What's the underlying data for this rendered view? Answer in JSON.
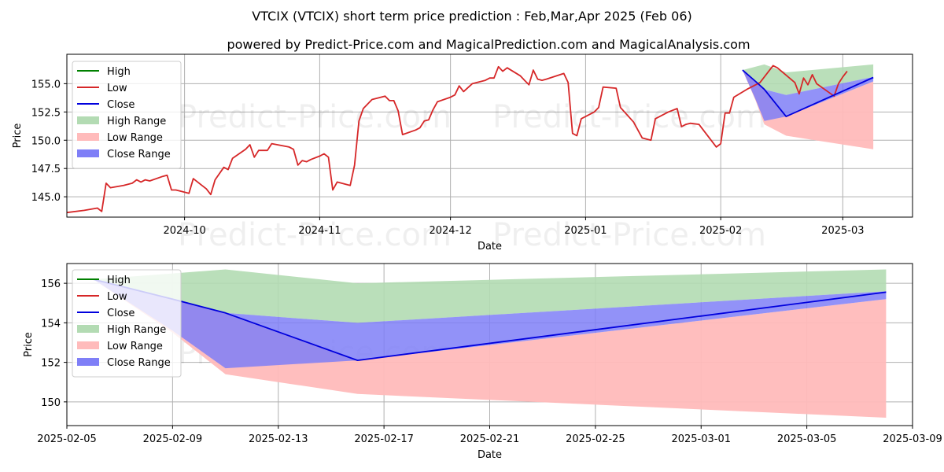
{
  "title": "VTCIX (VTCIX) short term price prediction : Feb,Mar,Apr 2025 (Feb 06)",
  "subtitle": "powered by Predict-Price.com and MagicalPrediction.com and MagicalAnalysis.com",
  "watermark": "Predict-Price.com",
  "colors": {
    "high": "#008000",
    "low": "#d62728",
    "close": "#0000dd",
    "high_range": "#b3dbb3",
    "low_range": "#ffbbbb",
    "close_range": "#7f7ff7"
  },
  "chart_data": [
    {
      "type": "line",
      "xlabel": "Date",
      "ylabel": "Price",
      "x_axis": "date",
      "xlim": [
        "2024-09-04",
        "2025-03-17"
      ],
      "ylim": [
        143.2,
        157.6
      ],
      "xticks": [
        "2024-10",
        "2024-11",
        "2024-12",
        "2025-01",
        "2025-02",
        "2025-03"
      ],
      "xtick_dates": [
        "2024-10-01",
        "2024-11-01",
        "2024-12-01",
        "2025-01-01",
        "2025-02-01",
        "2025-03-01"
      ],
      "yticks": [
        145.0,
        147.5,
        150.0,
        152.5,
        155.0
      ],
      "ytick_labels": [
        "145.0",
        "147.5",
        "150.0",
        "152.5",
        "155.0"
      ],
      "grid": true,
      "legend": "top-left",
      "legend_entries": [
        "High",
        "Low",
        "Close",
        "High Range",
        "Low Range",
        "Close Range"
      ],
      "series": [
        {
          "name": "Low",
          "points": [
            [
              "2024-09-04",
              143.6
            ],
            [
              "2024-09-08",
              143.8
            ],
            [
              "2024-09-11",
              144.0
            ],
            [
              "2024-09-12",
              143.7
            ],
            [
              "2024-09-13",
              146.2
            ],
            [
              "2024-09-14",
              145.8
            ],
            [
              "2024-09-17",
              146.0
            ],
            [
              "2024-09-19",
              146.2
            ],
            [
              "2024-09-20",
              146.5
            ],
            [
              "2024-09-21",
              146.3
            ],
            [
              "2024-09-22",
              146.5
            ],
            [
              "2024-09-23",
              146.4
            ],
            [
              "2024-09-26",
              146.8
            ],
            [
              "2024-09-27",
              146.9
            ],
            [
              "2024-09-28",
              145.6
            ],
            [
              "2024-09-29",
              145.6
            ],
            [
              "2024-09-30",
              145.5
            ],
            [
              "2024-10-02",
              145.3
            ],
            [
              "2024-10-03",
              146.6
            ],
            [
              "2024-10-06",
              145.7
            ],
            [
              "2024-10-07",
              145.2
            ],
            [
              "2024-10-08",
              146.5
            ],
            [
              "2024-10-10",
              147.6
            ],
            [
              "2024-10-11",
              147.4
            ],
            [
              "2024-10-12",
              148.4
            ],
            [
              "2024-10-15",
              149.2
            ],
            [
              "2024-10-16",
              149.6
            ],
            [
              "2024-10-17",
              148.5
            ],
            [
              "2024-10-18",
              149.1
            ],
            [
              "2024-10-19",
              149.1
            ],
            [
              "2024-10-20",
              149.1
            ],
            [
              "2024-10-21",
              149.7
            ],
            [
              "2024-10-25",
              149.4
            ],
            [
              "2024-10-26",
              149.2
            ],
            [
              "2024-10-27",
              147.8
            ],
            [
              "2024-10-28",
              148.2
            ],
            [
              "2024-10-29",
              148.1
            ],
            [
              "2024-10-30",
              148.3
            ],
            [
              "2024-11-01",
              148.6
            ],
            [
              "2024-11-02",
              148.8
            ],
            [
              "2024-11-03",
              148.5
            ],
            [
              "2024-11-04",
              145.6
            ],
            [
              "2024-11-05",
              146.3
            ],
            [
              "2024-11-08",
              146.0
            ],
            [
              "2024-11-09",
              147.8
            ],
            [
              "2024-11-10",
              151.7
            ],
            [
              "2024-11-11",
              152.8
            ],
            [
              "2024-11-13",
              153.6
            ],
            [
              "2024-11-16",
              153.9
            ],
            [
              "2024-11-17",
              153.5
            ],
            [
              "2024-11-18",
              153.5
            ],
            [
              "2024-11-19",
              152.6
            ],
            [
              "2024-11-20",
              150.5
            ],
            [
              "2024-11-23",
              150.9
            ],
            [
              "2024-11-24",
              151.1
            ],
            [
              "2024-11-25",
              151.7
            ],
            [
              "2024-11-26",
              151.8
            ],
            [
              "2024-11-27",
              152.7
            ],
            [
              "2024-11-28",
              153.4
            ],
            [
              "2024-12-01",
              153.8
            ],
            [
              "2024-12-02",
              154.0
            ],
            [
              "2024-12-03",
              154.8
            ],
            [
              "2024-12-04",
              154.3
            ],
            [
              "2024-12-06",
              155.0
            ],
            [
              "2024-12-09",
              155.3
            ],
            [
              "2024-12-10",
              155.5
            ],
            [
              "2024-12-11",
              155.5
            ],
            [
              "2024-12-12",
              156.5
            ],
            [
              "2024-12-13",
              156.1
            ],
            [
              "2024-12-14",
              156.4
            ],
            [
              "2024-12-17",
              155.7
            ],
            [
              "2024-12-18",
              155.3
            ],
            [
              "2024-12-19",
              154.9
            ],
            [
              "2024-12-20",
              156.2
            ],
            [
              "2024-12-21",
              155.4
            ],
            [
              "2024-12-22",
              155.3
            ],
            [
              "2024-12-23",
              155.4
            ],
            [
              "2024-12-27",
              155.9
            ],
            [
              "2024-12-28",
              155.1
            ],
            [
              "2024-12-29",
              150.6
            ],
            [
              "2024-12-30",
              150.4
            ],
            [
              "2024-12-31",
              151.9
            ],
            [
              "2025-01-03",
              152.5
            ],
            [
              "2025-01-04",
              152.9
            ],
            [
              "2025-01-05",
              154.7
            ],
            [
              "2025-01-08",
              154.6
            ],
            [
              "2025-01-09",
              152.9
            ],
            [
              "2025-01-12",
              151.6
            ],
            [
              "2025-01-14",
              150.2
            ],
            [
              "2025-01-16",
              150.0
            ],
            [
              "2025-01-17",
              151.9
            ],
            [
              "2025-01-20",
              152.5
            ],
            [
              "2025-01-22",
              152.8
            ],
            [
              "2025-01-23",
              151.2
            ],
            [
              "2025-01-24",
              151.4
            ],
            [
              "2025-01-25",
              151.5
            ],
            [
              "2025-01-27",
              151.4
            ],
            [
              "2025-01-31",
              149.4
            ],
            [
              "2025-02-01",
              149.7
            ],
            [
              "2025-02-02",
              152.4
            ],
            [
              "2025-02-03",
              152.4
            ],
            [
              "2025-02-04",
              153.8
            ],
            [
              "2025-02-07",
              154.5
            ],
            [
              "2025-02-10",
              155.1
            ],
            [
              "2025-02-13",
              156.6
            ],
            [
              "2025-02-14",
              156.4
            ],
            [
              "2025-02-18",
              155.1
            ],
            [
              "2025-02-19",
              154.1
            ],
            [
              "2025-02-20",
              155.5
            ],
            [
              "2025-02-21",
              154.9
            ],
            [
              "2025-02-22",
              155.8
            ],
            [
              "2025-02-23",
              155.0
            ],
            [
              "2025-02-27",
              153.9
            ],
            [
              "2025-02-28",
              155.0
            ],
            [
              "2025-03-01",
              155.6
            ],
            [
              "2025-03-02",
              156.1
            ]
          ]
        },
        {
          "name": "Close",
          "points": [
            [
              "2025-02-06",
              156.2
            ],
            [
              "2025-02-09",
              155.2
            ],
            [
              "2025-02-11",
              154.5
            ],
            [
              "2025-02-16",
              152.1
            ],
            [
              "2025-03-08",
              155.55
            ]
          ]
        }
      ],
      "ranges": [
        {
          "name": "High Range",
          "points": [
            [
              "2025-02-06",
              156.2,
              156.2
            ],
            [
              "2025-02-09",
              156.5,
              155.2
            ],
            [
              "2025-02-11",
              156.7,
              154.5
            ],
            [
              "2025-02-16",
              156.0,
              154.0
            ],
            [
              "2025-03-08",
              156.7,
              155.6
            ]
          ]
        },
        {
          "name": "Low Range",
          "points": [
            [
              "2025-02-06",
              156.2,
              156.2
            ],
            [
              "2025-02-09",
              153.5,
              155.2
            ],
            [
              "2025-02-11",
              151.4,
              154.5
            ],
            [
              "2025-02-16",
              150.4,
              152.1
            ],
            [
              "2025-03-08",
              149.2,
              155.2
            ]
          ]
        },
        {
          "name": "Close Range",
          "points": [
            [
              "2025-02-06",
              156.2,
              156.2
            ],
            [
              "2025-02-09",
              153.6,
              155.2
            ],
            [
              "2025-02-11",
              151.7,
              154.5
            ],
            [
              "2025-02-16",
              152.1,
              154.0
            ],
            [
              "2025-03-08",
              155.2,
              155.6
            ]
          ]
        }
      ]
    },
    {
      "type": "line",
      "xlabel": "Date",
      "ylabel": "Price",
      "x_axis": "date",
      "xlim": [
        "2025-02-05",
        "2025-03-09"
      ],
      "ylim": [
        148.8,
        157.0
      ],
      "xticks": [
        "2025-02-05",
        "2025-02-09",
        "2025-02-13",
        "2025-02-17",
        "2025-02-21",
        "2025-02-25",
        "2025-03-01",
        "2025-03-05",
        "2025-03-09"
      ],
      "xtick_dates": [
        "2025-02-05",
        "2025-02-09",
        "2025-02-13",
        "2025-02-17",
        "2025-02-21",
        "2025-02-25",
        "2025-03-01",
        "2025-03-05",
        "2025-03-09"
      ],
      "yticks": [
        150,
        152,
        154,
        156
      ],
      "ytick_labels": [
        "150",
        "152",
        "154",
        "156"
      ],
      "grid": true,
      "legend": "top-left",
      "legend_entries": [
        "High",
        "Low",
        "Close",
        "High Range",
        "Low Range",
        "Close Range"
      ],
      "series": [
        {
          "name": "Close",
          "points": [
            [
              "2025-02-06",
              156.2
            ],
            [
              "2025-02-09",
              155.2
            ],
            [
              "2025-02-11",
              154.5
            ],
            [
              "2025-02-16",
              152.1
            ],
            [
              "2025-03-08",
              155.55
            ]
          ]
        }
      ],
      "ranges": [
        {
          "name": "High Range",
          "points": [
            [
              "2025-02-06",
              156.2,
              156.2
            ],
            [
              "2025-02-09",
              156.5,
              155.2
            ],
            [
              "2025-02-11",
              156.7,
              154.5
            ],
            [
              "2025-02-16",
              156.0,
              154.0
            ],
            [
              "2025-03-08",
              156.7,
              155.6
            ]
          ]
        },
        {
          "name": "Low Range",
          "points": [
            [
              "2025-02-06",
              156.2,
              156.2
            ],
            [
              "2025-02-09",
              153.5,
              155.2
            ],
            [
              "2025-02-11",
              151.4,
              154.5
            ],
            [
              "2025-02-16",
              150.4,
              152.1
            ],
            [
              "2025-03-08",
              149.2,
              155.2
            ]
          ]
        },
        {
          "name": "Close Range",
          "points": [
            [
              "2025-02-06",
              156.2,
              156.2
            ],
            [
              "2025-02-09",
              153.6,
              155.2
            ],
            [
              "2025-02-11",
              151.7,
              154.5
            ],
            [
              "2025-02-16",
              152.1,
              154.0
            ],
            [
              "2025-03-08",
              155.2,
              155.6
            ]
          ]
        }
      ]
    }
  ]
}
